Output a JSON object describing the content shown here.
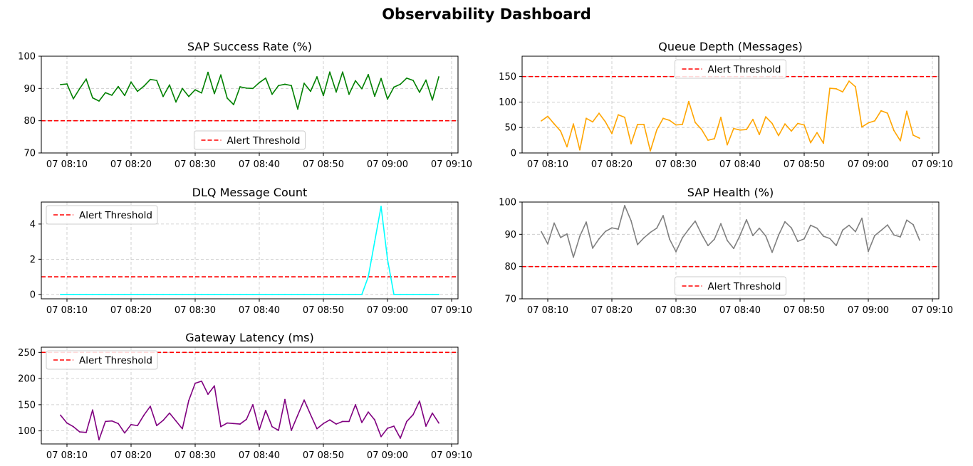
{
  "dashboard": {
    "title": "Observability Dashboard"
  },
  "chart_data": [
    {
      "type": "line",
      "title": "SAP Success Rate (%)",
      "xlabel": "",
      "ylabel": "",
      "x_start": "2024-01-07 08:09",
      "x_step_minutes": 1,
      "xlim": [
        "07 08:06",
        "07 09:11"
      ],
      "ylim": [
        70,
        100
      ],
      "yticks": [
        70,
        80,
        90,
        100
      ],
      "xticks": [
        "07 08:10",
        "07 08:20",
        "07 08:30",
        "07 08:40",
        "07 08:50",
        "07 09:00",
        "07 09:10"
      ],
      "grid": true,
      "legend_position": "lower center",
      "series": [
        {
          "color": "#008000",
          "values": [
            91.2,
            91.4,
            86.8,
            90.0,
            92.9,
            87.1,
            86.1,
            88.7,
            87.9,
            90.6,
            87.8,
            92.0,
            89.1,
            90.7,
            92.8,
            92.5,
            87.5,
            91.1,
            85.8,
            90.0,
            87.5,
            89.6,
            88.6,
            95.0,
            88.4,
            94.2,
            87.0,
            85.0,
            90.5,
            90.1,
            90.0,
            91.8,
            93.2,
            88.2,
            90.9,
            91.3,
            90.9,
            83.6,
            91.6,
            89.1,
            93.6,
            87.8,
            95.1,
            88.9,
            95.1,
            88.2,
            92.4,
            89.9,
            94.3,
            87.6,
            93.1,
            86.7,
            90.4,
            91.3,
            93.2,
            92.5,
            88.8,
            92.6,
            86.4,
            93.6
          ]
        }
      ],
      "threshold": {
        "name": "Alert Threshold",
        "value": 80,
        "color": "#ff0000"
      }
    },
    {
      "type": "line",
      "title": "Queue Depth (Messages)",
      "xlabel": "",
      "ylabel": "",
      "x_start": "2024-01-07 08:09",
      "x_step_minutes": 1,
      "xlim": [
        "07 08:06",
        "07 09:11"
      ],
      "ylim": [
        0,
        190
      ],
      "yticks": [
        0,
        50,
        100,
        150
      ],
      "xticks": [
        "07 08:10",
        "07 08:20",
        "07 08:30",
        "07 08:40",
        "07 08:50",
        "07 09:00",
        "07 09:10"
      ],
      "grid": true,
      "legend_position": "upper center",
      "series": [
        {
          "color": "#ffa500",
          "values": [
            63,
            72,
            57,
            43,
            12,
            57,
            6,
            68,
            61,
            78,
            61,
            38,
            75,
            70,
            18,
            56,
            56,
            4,
            45,
            68,
            64,
            55,
            56,
            101,
            60,
            46,
            25,
            28,
            70,
            16,
            48,
            45,
            46,
            66,
            36,
            71,
            58,
            34,
            57,
            43,
            58,
            55,
            20,
            40,
            19,
            127,
            126,
            120,
            141,
            130,
            51,
            59,
            63,
            83,
            78,
            44,
            24,
            82,
            35,
            29
          ]
        }
      ],
      "threshold": {
        "name": "Alert Threshold",
        "value": 150,
        "color": "#ff0000"
      }
    },
    {
      "type": "line",
      "title": "DLQ Message Count",
      "xlabel": "",
      "ylabel": "",
      "x_start": "2024-01-07 08:09",
      "x_step_minutes": 1,
      "xlim": [
        "07 08:06",
        "07 09:11"
      ],
      "ylim": [
        -0.25,
        5.25
      ],
      "yticks": [
        0,
        2,
        4
      ],
      "xticks": [
        "07 08:10",
        "07 08:20",
        "07 08:30",
        "07 08:40",
        "07 08:50",
        "07 09:00",
        "07 09:10"
      ],
      "grid": true,
      "legend_position": "upper left",
      "series": [
        {
          "color": "#00ffff",
          "values": [
            0,
            0,
            0,
            0,
            0,
            0,
            0,
            0,
            0,
            0,
            0,
            0,
            0,
            0,
            0,
            0,
            0,
            0,
            0,
            0,
            0,
            0,
            0,
            0,
            0,
            0,
            0,
            0,
            0,
            0,
            0,
            0,
            0,
            0,
            0,
            0,
            0,
            0,
            0,
            0,
            0,
            0,
            0,
            0,
            0,
            0,
            0,
            0,
            1,
            3,
            5,
            2,
            0,
            0,
            0,
            0,
            0,
            0,
            0,
            0
          ]
        }
      ],
      "threshold": {
        "name": "Alert Threshold",
        "value": 1,
        "color": "#ff0000"
      }
    },
    {
      "type": "line",
      "title": "SAP Health (%)",
      "xlabel": "",
      "ylabel": "",
      "x_start": "2024-01-07 08:09",
      "x_step_minutes": 1,
      "xlim": [
        "07 08:06",
        "07 09:11"
      ],
      "ylim": [
        70,
        100
      ],
      "yticks": [
        70,
        80,
        90,
        100
      ],
      "xticks": [
        "07 08:10",
        "07 08:20",
        "07 08:30",
        "07 08:40",
        "07 08:50",
        "07 09:00",
        "07 09:10"
      ],
      "grid": true,
      "legend_position": "lower center",
      "series": [
        {
          "color": "#808080",
          "values": [
            90.8,
            87.0,
            93.5,
            89.0,
            90.1,
            82.9,
            89.4,
            93.8,
            85.7,
            88.6,
            90.9,
            92.0,
            91.6,
            98.9,
            94.2,
            86.8,
            88.9,
            90.6,
            91.9,
            95.8,
            88.5,
            84.6,
            88.9,
            91.6,
            94.1,
            90.0,
            86.5,
            88.5,
            93.3,
            88.1,
            85.6,
            89.7,
            94.5,
            89.6,
            91.9,
            89.5,
            84.4,
            89.7,
            93.9,
            92.0,
            87.8,
            88.6,
            92.8,
            91.9,
            89.4,
            88.7,
            86.5,
            91.3,
            92.8,
            90.8,
            95.0,
            84.7,
            89.6,
            91.2,
            92.9,
            89.8,
            89.2,
            94.4,
            93.0,
            88.2
          ]
        }
      ],
      "threshold": {
        "name": "Alert Threshold",
        "value": 80,
        "color": "#ff0000"
      }
    },
    {
      "type": "line",
      "title": "Gateway Latency (ms)",
      "xlabel": "",
      "ylabel": "",
      "x_start": "2024-01-07 08:09",
      "x_step_minutes": 1,
      "xlim": [
        "07 08:06",
        "07 09:11"
      ],
      "ylim": [
        75,
        260
      ],
      "yticks": [
        100,
        150,
        200,
        250
      ],
      "xticks": [
        "07 08:10",
        "07 08:20",
        "07 08:30",
        "07 08:40",
        "07 08:50",
        "07 09:00",
        "07 09:10"
      ],
      "grid": true,
      "legend_position": "upper left",
      "series": [
        {
          "color": "#800080",
          "values": [
            130,
            115,
            108,
            98,
            97,
            140,
            83,
            118,
            119,
            114,
            96,
            112,
            110,
            130,
            147,
            110,
            120,
            134,
            119,
            104,
            158,
            191,
            195,
            170,
            186,
            108,
            115,
            114,
            113,
            122,
            150,
            102,
            139,
            108,
            101,
            160,
            101,
            130,
            159,
            131,
            104,
            114,
            121,
            113,
            118,
            118,
            150,
            116,
            136,
            121,
            89,
            105,
            109,
            86,
            118,
            131,
            157,
            109,
            134,
            115
          ]
        }
      ],
      "threshold": {
        "name": "Alert Threshold",
        "value": 250,
        "color": "#ff0000"
      }
    }
  ]
}
